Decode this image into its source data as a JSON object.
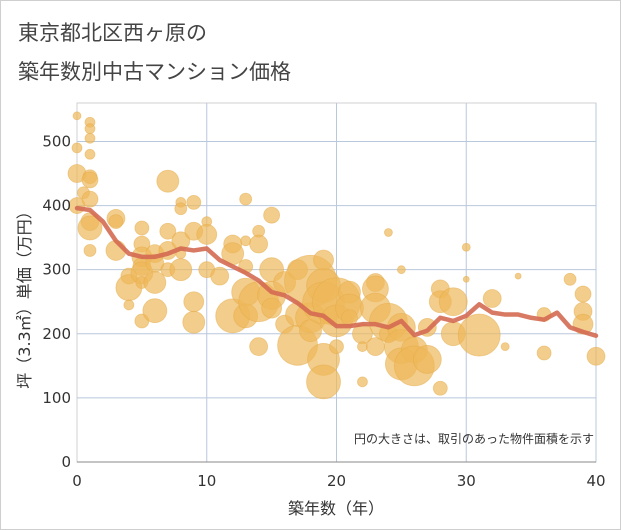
{
  "title": {
    "line1": "東京都北区西ヶ原の",
    "line2": "築年数別中古マンション価格"
  },
  "chart_data": {
    "type": "scatter",
    "xlabel": "築年数（年）",
    "ylabel": "坪（3.3㎡）単価（万円）",
    "xlim": [
      0,
      40
    ],
    "ylim": [
      0,
      560
    ],
    "xticks": [
      0,
      10,
      20,
      30,
      40
    ],
    "yticks": [
      0,
      100,
      200,
      300,
      400,
      500
    ],
    "grid": true,
    "note": "円の大きさは、取引のあった物件面積を示す",
    "colors": {
      "bubble": "#eeb85a",
      "line": "#d46a52",
      "grid": "#b8c8dd"
    },
    "trend_line": {
      "x": [
        0,
        1,
        2,
        3,
        4,
        5,
        6,
        7,
        8,
        9,
        10,
        11,
        12,
        13,
        14,
        15,
        16,
        17,
        18,
        19,
        20,
        21,
        22,
        23,
        24,
        25,
        26,
        27,
        28,
        29,
        30,
        31,
        32,
        33,
        34,
        35,
        36,
        37,
        38,
        39,
        40
      ],
      "y": [
        396,
        393,
        375,
        345,
        325,
        320,
        320,
        325,
        333,
        330,
        333,
        315,
        305,
        295,
        283,
        265,
        260,
        248,
        232,
        228,
        212,
        212,
        215,
        215,
        210,
        220,
        198,
        205,
        225,
        220,
        228,
        246,
        233,
        230,
        230,
        225,
        222,
        233,
        210,
        203,
        197
      ]
    },
    "bubbles": [
      {
        "x": 0,
        "y": 540,
        "r": 4
      },
      {
        "x": 0,
        "y": 490,
        "r": 5
      },
      {
        "x": 0,
        "y": 450,
        "r": 9
      },
      {
        "x": 0,
        "y": 400,
        "r": 8
      },
      {
        "x": 0.5,
        "y": 420,
        "r": 6
      },
      {
        "x": 1,
        "y": 530,
        "r": 5
      },
      {
        "x": 1,
        "y": 520,
        "r": 5
      },
      {
        "x": 1,
        "y": 505,
        "r": 5
      },
      {
        "x": 1,
        "y": 480,
        "r": 5
      },
      {
        "x": 1,
        "y": 445,
        "r": 7
      },
      {
        "x": 1,
        "y": 440,
        "r": 8
      },
      {
        "x": 1,
        "y": 410,
        "r": 8
      },
      {
        "x": 1,
        "y": 375,
        "r": 9
      },
      {
        "x": 1,
        "y": 365,
        "r": 12
      },
      {
        "x": 1,
        "y": 330,
        "r": 6
      },
      {
        "x": 3,
        "y": 380,
        "r": 9
      },
      {
        "x": 3,
        "y": 375,
        "r": 7
      },
      {
        "x": 3,
        "y": 330,
        "r": 10
      },
      {
        "x": 4,
        "y": 290,
        "r": 8
      },
      {
        "x": 4,
        "y": 272,
        "r": 13
      },
      {
        "x": 4,
        "y": 245,
        "r": 5
      },
      {
        "x": 5,
        "y": 365,
        "r": 7
      },
      {
        "x": 5,
        "y": 340,
        "r": 8
      },
      {
        "x": 5,
        "y": 320,
        "r": 10
      },
      {
        "x": 5,
        "y": 305,
        "r": 9
      },
      {
        "x": 5,
        "y": 295,
        "r": 11
      },
      {
        "x": 5,
        "y": 280,
        "r": 6
      },
      {
        "x": 5,
        "y": 220,
        "r": 7
      },
      {
        "x": 6,
        "y": 325,
        "r": 9
      },
      {
        "x": 6,
        "y": 310,
        "r": 9
      },
      {
        "x": 6,
        "y": 280,
        "r": 11
      },
      {
        "x": 6,
        "y": 236,
        "r": 12
      },
      {
        "x": 7,
        "y": 438,
        "r": 11
      },
      {
        "x": 7,
        "y": 360,
        "r": 8
      },
      {
        "x": 7,
        "y": 330,
        "r": 9
      },
      {
        "x": 7,
        "y": 300,
        "r": 7
      },
      {
        "x": 8,
        "y": 405,
        "r": 5
      },
      {
        "x": 8,
        "y": 395,
        "r": 6
      },
      {
        "x": 8,
        "y": 345,
        "r": 9
      },
      {
        "x": 8,
        "y": 325,
        "r": 5
      },
      {
        "x": 8,
        "y": 300,
        "r": 11
      },
      {
        "x": 9,
        "y": 405,
        "r": 7
      },
      {
        "x": 9,
        "y": 360,
        "r": 9
      },
      {
        "x": 9,
        "y": 250,
        "r": 10
      },
      {
        "x": 9,
        "y": 218,
        "r": 11
      },
      {
        "x": 10,
        "y": 375,
        "r": 5
      },
      {
        "x": 10,
        "y": 355,
        "r": 10
      },
      {
        "x": 10,
        "y": 300,
        "r": 8
      },
      {
        "x": 11,
        "y": 290,
        "r": 9
      },
      {
        "x": 12,
        "y": 340,
        "r": 9
      },
      {
        "x": 12,
        "y": 325,
        "r": 11
      },
      {
        "x": 12,
        "y": 228,
        "r": 17
      },
      {
        "x": 13,
        "y": 410,
        "r": 6
      },
      {
        "x": 13,
        "y": 345,
        "r": 5
      },
      {
        "x": 13,
        "y": 305,
        "r": 7
      },
      {
        "x": 13,
        "y": 265,
        "r": 14
      },
      {
        "x": 13,
        "y": 228,
        "r": 12
      },
      {
        "x": 14,
        "y": 360,
        "r": 6
      },
      {
        "x": 14,
        "y": 340,
        "r": 9
      },
      {
        "x": 14,
        "y": 250,
        "r": 20
      },
      {
        "x": 14,
        "y": 180,
        "r": 9
      },
      {
        "x": 15,
        "y": 385,
        "r": 8
      },
      {
        "x": 15,
        "y": 300,
        "r": 12
      },
      {
        "x": 15,
        "y": 260,
        "r": 14
      },
      {
        "x": 15,
        "y": 240,
        "r": 10
      },
      {
        "x": 16,
        "y": 280,
        "r": 11
      },
      {
        "x": 16,
        "y": 215,
        "r": 9
      },
      {
        "x": 17,
        "y": 300,
        "r": 10
      },
      {
        "x": 17,
        "y": 230,
        "r": 12
      },
      {
        "x": 17,
        "y": 182,
        "r": 20
      },
      {
        "x": 18,
        "y": 282,
        "r": 26
      },
      {
        "x": 18,
        "y": 225,
        "r": 15
      },
      {
        "x": 18,
        "y": 205,
        "r": 11
      },
      {
        "x": 19,
        "y": 315,
        "r": 10
      },
      {
        "x": 19,
        "y": 275,
        "r": 17
      },
      {
        "x": 19,
        "y": 248,
        "r": 21
      },
      {
        "x": 19,
        "y": 160,
        "r": 16
      },
      {
        "x": 19,
        "y": 125,
        "r": 17
      },
      {
        "x": 20,
        "y": 250,
        "r": 24
      },
      {
        "x": 20,
        "y": 220,
        "r": 16
      },
      {
        "x": 20,
        "y": 180,
        "r": 7
      },
      {
        "x": 21,
        "y": 265,
        "r": 11
      },
      {
        "x": 21,
        "y": 240,
        "r": 14
      },
      {
        "x": 21,
        "y": 225,
        "r": 8
      },
      {
        "x": 22,
        "y": 200,
        "r": 10
      },
      {
        "x": 22,
        "y": 180,
        "r": 5
      },
      {
        "x": 22,
        "y": 125,
        "r": 5
      },
      {
        "x": 23,
        "y": 280,
        "r": 9
      },
      {
        "x": 23,
        "y": 270,
        "r": 13
      },
      {
        "x": 23,
        "y": 240,
        "r": 15
      },
      {
        "x": 23,
        "y": 180,
        "r": 9
      },
      {
        "x": 24,
        "y": 358,
        "r": 4
      },
      {
        "x": 24,
        "y": 218,
        "r": 19
      },
      {
        "x": 24,
        "y": 200,
        "r": 9
      },
      {
        "x": 25,
        "y": 300,
        "r": 4
      },
      {
        "x": 25,
        "y": 210,
        "r": 14
      },
      {
        "x": 25,
        "y": 180,
        "r": 17
      },
      {
        "x": 25,
        "y": 153,
        "r": 16
      },
      {
        "x": 26,
        "y": 175,
        "r": 13
      },
      {
        "x": 26,
        "y": 150,
        "r": 20
      },
      {
        "x": 27,
        "y": 210,
        "r": 9
      },
      {
        "x": 27,
        "y": 160,
        "r": 14
      },
      {
        "x": 28,
        "y": 115,
        "r": 7
      },
      {
        "x": 28,
        "y": 270,
        "r": 9
      },
      {
        "x": 28,
        "y": 250,
        "r": 11
      },
      {
        "x": 29,
        "y": 250,
        "r": 14
      },
      {
        "x": 29,
        "y": 200,
        "r": 12
      },
      {
        "x": 30,
        "y": 335,
        "r": 4
      },
      {
        "x": 30,
        "y": 285,
        "r": 3
      },
      {
        "x": 31,
        "y": 198,
        "r": 21
      },
      {
        "x": 32,
        "y": 255,
        "r": 9
      },
      {
        "x": 33,
        "y": 180,
        "r": 4
      },
      {
        "x": 34,
        "y": 290,
        "r": 3
      },
      {
        "x": 36,
        "y": 230,
        "r": 7
      },
      {
        "x": 36,
        "y": 170,
        "r": 7
      },
      {
        "x": 38,
        "y": 285,
        "r": 6
      },
      {
        "x": 39,
        "y": 262,
        "r": 8
      },
      {
        "x": 39,
        "y": 235,
        "r": 9
      },
      {
        "x": 39,
        "y": 215,
        "r": 10
      },
      {
        "x": 40,
        "y": 165,
        "r": 9
      }
    ]
  }
}
